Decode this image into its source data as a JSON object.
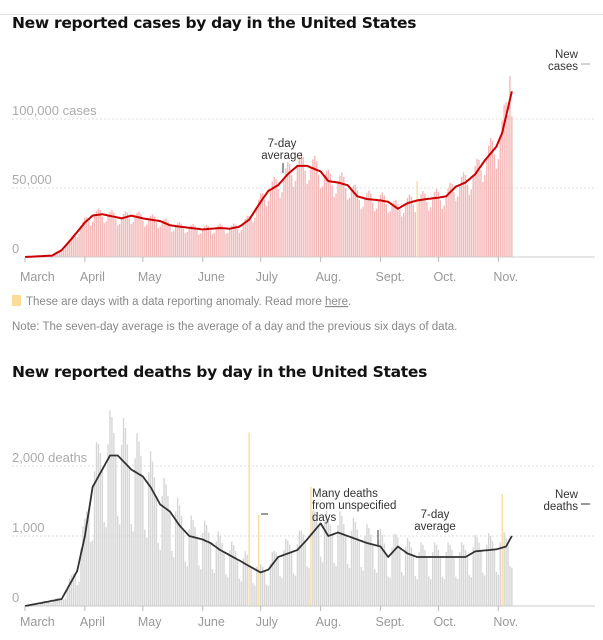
{
  "colors": {
    "cases_bar": "#f5b8b8",
    "cases_line": "#cc0000",
    "deaths_bar": "#d6d6d6",
    "deaths_line": "#333333",
    "anomaly": "#fddc9a",
    "grid": "#dddddd"
  },
  "legend": {
    "anomaly_text": "These are days with a data reporting anomaly. Read more ",
    "link": "here",
    "period": "."
  },
  "note": "Note: The seven-day average is the average of a day and the previous six days of data.",
  "chart_data": [
    {
      "type": "bar",
      "title": "New reported cases by day in the United States",
      "x_ticks": [
        "March",
        "April",
        "May",
        "June",
        "July",
        "Aug.",
        "Sept.",
        "Oct.",
        "Nov."
      ],
      "y_ticks": [
        {
          "value": 0,
          "label": "0"
        },
        {
          "value": 50000,
          "label": "50,000"
        },
        {
          "value": 100000,
          "label": "100,000 cases"
        }
      ],
      "x_range": [
        "2020-03-01",
        "2020-11-08"
      ],
      "grid": true,
      "annotations": {
        "average": [
          "7-day",
          "average"
        ],
        "daily": [
          "New",
          "cases"
        ]
      },
      "series": [
        {
          "name": "New cases",
          "kind": "daily bars",
          "peak": {
            "date": "2020-11-07",
            "value": 131000
          }
        },
        {
          "name": "7-day average",
          "kind": "line",
          "points": [
            [
              "2020-03-01",
              0
            ],
            [
              "2020-03-15",
              1000
            ],
            [
              "2020-03-20",
              5000
            ],
            [
              "2020-03-25",
              13000
            ],
            [
              "2020-04-01",
              25000
            ],
            [
              "2020-04-05",
              30000
            ],
            [
              "2020-04-10",
              31000
            ],
            [
              "2020-04-20",
              28000
            ],
            [
              "2020-04-25",
              30000
            ],
            [
              "2020-05-01",
              28000
            ],
            [
              "2020-05-10",
              26000
            ],
            [
              "2020-05-15",
              23000
            ],
            [
              "2020-05-20",
              22000
            ],
            [
              "2020-06-01",
              20000
            ],
            [
              "2020-06-10",
              21000
            ],
            [
              "2020-06-15",
              20500
            ],
            [
              "2020-06-20",
              22000
            ],
            [
              "2020-06-25",
              27000
            ],
            [
              "2020-07-01",
              40000
            ],
            [
              "2020-07-05",
              48000
            ],
            [
              "2020-07-10",
              52000
            ],
            [
              "2020-07-15",
              60000
            ],
            [
              "2020-07-20",
              66000
            ],
            [
              "2020-07-25",
              66000
            ],
            [
              "2020-08-01",
              62000
            ],
            [
              "2020-08-05",
              55000
            ],
            [
              "2020-08-10",
              54000
            ],
            [
              "2020-08-15",
              52000
            ],
            [
              "2020-08-20",
              44000
            ],
            [
              "2020-08-25",
              42000
            ],
            [
              "2020-09-01",
              41000
            ],
            [
              "2020-09-05",
              40000
            ],
            [
              "2020-09-10",
              35000
            ],
            [
              "2020-09-15",
              39000
            ],
            [
              "2020-09-20",
              41000
            ],
            [
              "2020-09-25",
              42000
            ],
            [
              "2020-10-01",
              43000
            ],
            [
              "2020-10-05",
              44000
            ],
            [
              "2020-10-10",
              51000
            ],
            [
              "2020-10-15",
              54000
            ],
            [
              "2020-10-20",
              60000
            ],
            [
              "2020-10-25",
              70000
            ],
            [
              "2020-10-31",
              80000
            ],
            [
              "2020-11-03",
              90000
            ],
            [
              "2020-11-08",
              120000
            ]
          ]
        }
      ],
      "anomalies": [
        [
          "2020-09-20",
          55000
        ]
      ]
    },
    {
      "type": "bar",
      "title": "New reported deaths by day in the United States",
      "x_ticks": [
        "March",
        "April",
        "May",
        "June",
        "July",
        "Aug.",
        "Sept.",
        "Oct.",
        "Nov."
      ],
      "y_ticks": [
        {
          "value": 0,
          "label": "0"
        },
        {
          "value": 1000,
          "label": "1,000"
        },
        {
          "value": 2000,
          "label": "2,000 deaths"
        }
      ],
      "x_range": [
        "2020-03-01",
        "2020-11-08"
      ],
      "grid": true,
      "annotations": {
        "unspecified": [
          "Many deaths",
          "from unspecified",
          "days"
        ],
        "average": [
          "7-day",
          "average"
        ],
        "daily": [
          "New",
          "deaths"
        ]
      },
      "series": [
        {
          "name": "New deaths",
          "kind": "daily bars",
          "peak": {
            "date": "2020-04-15",
            "value": 2700
          }
        },
        {
          "name": "7-day average",
          "kind": "line",
          "points": [
            [
              "2020-03-01",
              0
            ],
            [
              "2020-03-20",
              100
            ],
            [
              "2020-03-28",
              500
            ],
            [
              "2020-04-01",
              1000
            ],
            [
              "2020-04-05",
              1700
            ],
            [
              "2020-04-10",
              1950
            ],
            [
              "2020-04-14",
              2150
            ],
            [
              "2020-04-18",
              2150
            ],
            [
              "2020-04-25",
              1950
            ],
            [
              "2020-05-01",
              1850
            ],
            [
              "2020-05-05",
              1700
            ],
            [
              "2020-05-10",
              1450
            ],
            [
              "2020-05-15",
              1350
            ],
            [
              "2020-05-20",
              1150
            ],
            [
              "2020-05-25",
              1000
            ],
            [
              "2020-06-01",
              950
            ],
            [
              "2020-06-05",
              900
            ],
            [
              "2020-06-10",
              800
            ],
            [
              "2020-06-20",
              650
            ],
            [
              "2020-06-25",
              570
            ],
            [
              "2020-07-01",
              480
            ],
            [
              "2020-07-05",
              520
            ],
            [
              "2020-07-10",
              700
            ],
            [
              "2020-07-20",
              800
            ],
            [
              "2020-07-25",
              950
            ],
            [
              "2020-08-01",
              1180
            ],
            [
              "2020-08-05",
              1000
            ],
            [
              "2020-08-10",
              1050
            ],
            [
              "2020-08-15",
              1000
            ],
            [
              "2020-08-20",
              950
            ],
            [
              "2020-08-25",
              900
            ],
            [
              "2020-09-01",
              850
            ],
            [
              "2020-09-05",
              700
            ],
            [
              "2020-09-10",
              850
            ],
            [
              "2020-09-15",
              750
            ],
            [
              "2020-09-20",
              700
            ],
            [
              "2020-10-01",
              700
            ],
            [
              "2020-10-10",
              700
            ],
            [
              "2020-10-15",
              700
            ],
            [
              "2020-10-20",
              780
            ],
            [
              "2020-10-31",
              810
            ],
            [
              "2020-11-05",
              850
            ],
            [
              "2020-11-08",
              1000
            ]
          ]
        }
      ],
      "anomalies": [
        [
          "2020-06-25",
          2480
        ],
        [
          "2020-06-30",
          1300
        ],
        [
          "2020-07-27",
          1700
        ],
        [
          "2020-11-03",
          1600
        ]
      ]
    }
  ]
}
